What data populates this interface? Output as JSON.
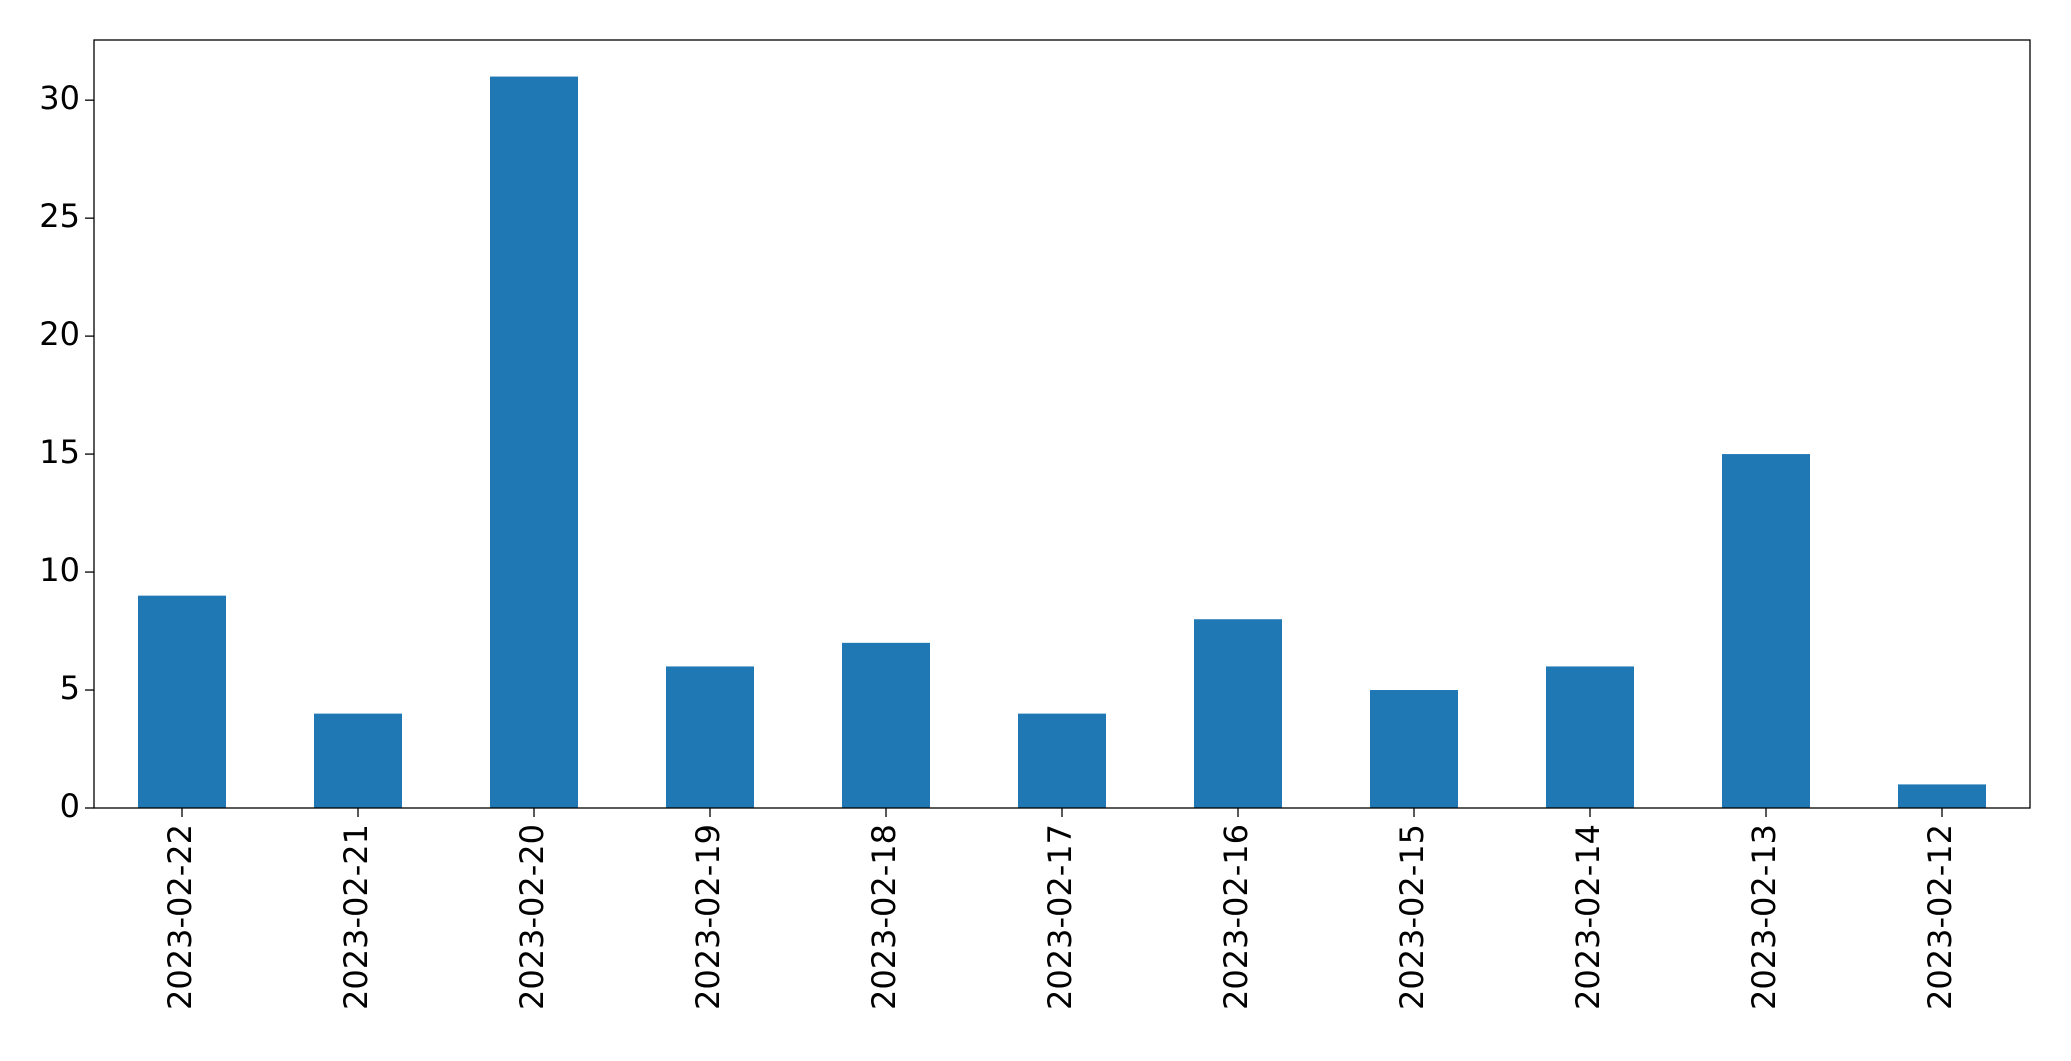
{
  "chart_data": {
    "type": "bar",
    "categories": [
      "2023-02-22",
      "2023-02-21",
      "2023-02-20",
      "2023-02-19",
      "2023-02-18",
      "2023-02-17",
      "2023-02-16",
      "2023-02-15",
      "2023-02-14",
      "2023-02-13",
      "2023-02-12"
    ],
    "values": [
      9,
      4,
      31,
      6,
      7,
      4,
      8,
      5,
      6,
      15,
      1
    ],
    "color": "#1f77b4",
    "ylim": [
      0,
      32.55
    ],
    "yticks": [
      0,
      5,
      10,
      15,
      20,
      25,
      30
    ],
    "grid": false
  }
}
